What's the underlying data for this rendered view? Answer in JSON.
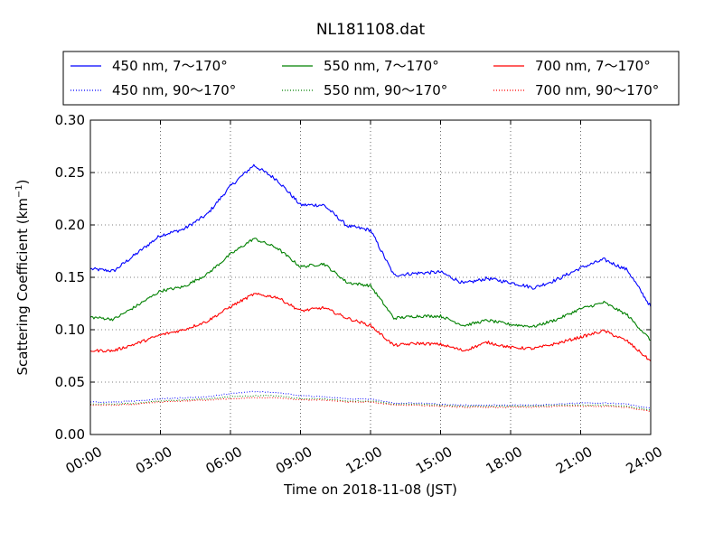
{
  "chart_data": {
    "type": "line",
    "title": "NL181108.dat",
    "xlabel": "Time on 2018-11-08 (JST)",
    "ylabel_main": "Scattering Coefficient (km",
    "ylabel_sup": "−1",
    "ylabel_close": ")",
    "xlim": [
      "00:00",
      "24:00"
    ],
    "ylim": [
      0,
      0.3
    ],
    "grid": true,
    "legend_position": "top (above plot)",
    "x_ticks": [
      "00:00",
      "03:00",
      "06:00",
      "09:00",
      "12:00",
      "15:00",
      "18:00",
      "21:00",
      "24:00"
    ],
    "y_ticks": [
      "0.00",
      "0.05",
      "0.10",
      "0.15",
      "0.20",
      "0.25",
      "0.30"
    ],
    "x_hours": [
      0,
      1,
      2,
      3,
      4,
      5,
      6,
      7,
      8,
      9,
      10,
      11,
      12,
      13,
      14,
      15,
      16,
      17,
      18,
      19,
      20,
      21,
      22,
      23,
      24
    ],
    "series": [
      {
        "name": "450 nm, 7～170°",
        "color": "#0000ff",
        "style": "solid",
        "values": [
          0.158,
          0.156,
          0.173,
          0.19,
          0.196,
          0.21,
          0.237,
          0.257,
          0.243,
          0.219,
          0.219,
          0.199,
          0.195,
          0.152,
          0.154,
          0.155,
          0.144,
          0.149,
          0.145,
          0.14,
          0.148,
          0.159,
          0.167,
          0.157,
          0.122
        ]
      },
      {
        "name": "450 nm, 90～170°",
        "color": "#0000ff",
        "style": "dotted",
        "values": [
          0.031,
          0.031,
          0.032,
          0.034,
          0.035,
          0.036,
          0.039,
          0.041,
          0.04,
          0.037,
          0.036,
          0.034,
          0.034,
          0.03,
          0.03,
          0.029,
          0.028,
          0.028,
          0.028,
          0.028,
          0.029,
          0.03,
          0.03,
          0.029,
          0.025
        ]
      },
      {
        "name": "550 nm, 7～170°",
        "color": "#008000",
        "style": "solid",
        "values": [
          0.112,
          0.11,
          0.123,
          0.137,
          0.141,
          0.153,
          0.172,
          0.187,
          0.178,
          0.16,
          0.163,
          0.145,
          0.142,
          0.111,
          0.113,
          0.113,
          0.104,
          0.109,
          0.105,
          0.103,
          0.11,
          0.12,
          0.126,
          0.114,
          0.09
        ]
      },
      {
        "name": "550 nm, 90～170°",
        "color": "#008000",
        "style": "dotted",
        "values": [
          0.029,
          0.029,
          0.03,
          0.032,
          0.033,
          0.034,
          0.036,
          0.037,
          0.037,
          0.034,
          0.034,
          0.032,
          0.032,
          0.029,
          0.029,
          0.028,
          0.027,
          0.027,
          0.027,
          0.027,
          0.028,
          0.028,
          0.028,
          0.027,
          0.023
        ]
      },
      {
        "name": "700 nm, 7～170°",
        "color": "#ff0000",
        "style": "solid",
        "values": [
          0.08,
          0.08,
          0.087,
          0.095,
          0.1,
          0.108,
          0.122,
          0.134,
          0.131,
          0.118,
          0.121,
          0.111,
          0.104,
          0.085,
          0.087,
          0.086,
          0.08,
          0.088,
          0.083,
          0.082,
          0.087,
          0.093,
          0.099,
          0.089,
          0.07
        ]
      },
      {
        "name": "700 nm, 90～170°",
        "color": "#ff0000",
        "style": "dotted",
        "values": [
          0.028,
          0.028,
          0.029,
          0.031,
          0.032,
          0.033,
          0.034,
          0.035,
          0.035,
          0.033,
          0.033,
          0.031,
          0.031,
          0.028,
          0.028,
          0.027,
          0.026,
          0.026,
          0.026,
          0.026,
          0.027,
          0.027,
          0.027,
          0.026,
          0.022
        ]
      }
    ]
  }
}
